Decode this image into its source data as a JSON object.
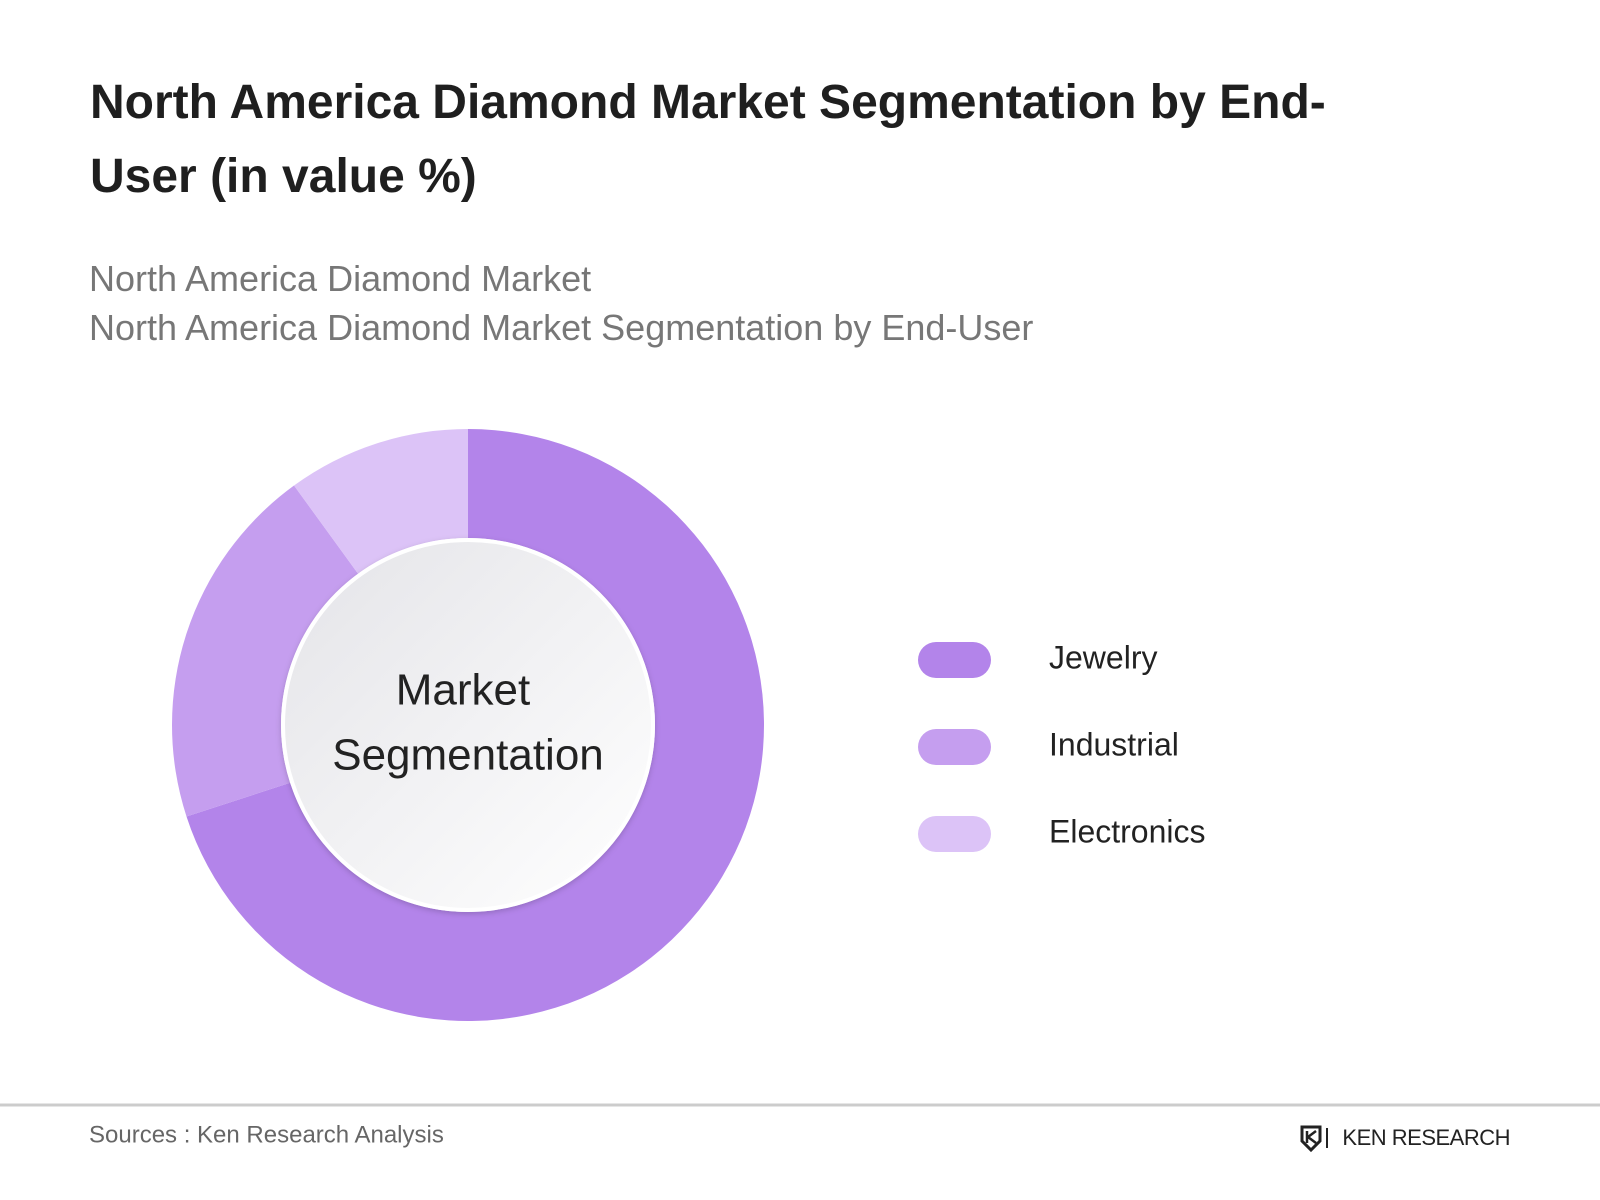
{
  "chart_data": {
    "type": "pie",
    "title": "North America Diamond Market Segmentation by End-User (in value %)",
    "subtitle": [
      "North America Diamond Market",
      "North America Diamond Market Segmentation by End-User"
    ],
    "center_label": [
      "Market",
      "Segmentation"
    ],
    "categories": [
      "Jewelry",
      "Industrial",
      "Electronics"
    ],
    "values": [
      70,
      20,
      10
    ],
    "colors": [
      "#b384ea",
      "#c59eef",
      "#dcc3f7"
    ],
    "legend": "right"
  },
  "footer": {
    "source": "Sources : Ken Research Analysis",
    "brand": "KEN RESEARCH"
  }
}
